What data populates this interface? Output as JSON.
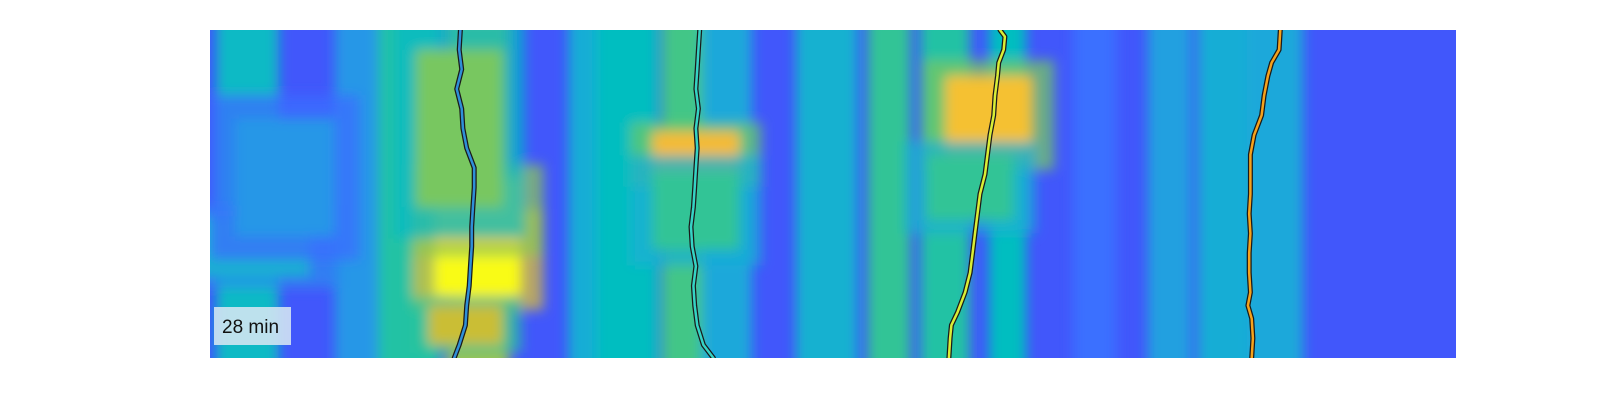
{
  "chart_data": {
    "type": "heatmap",
    "title": "",
    "xlabel": "",
    "ylabel": "",
    "colormap": "parula",
    "colormap_stops": [
      "#3e26a8",
      "#4743f8",
      "#3a70ff",
      "#1fa7dc",
      "#00bfbf",
      "#63c96c",
      "#c4bf35",
      "#f5ba34",
      "#f7de28",
      "#f9fb15"
    ],
    "grid": false,
    "axes_visible": false,
    "x": {
      "min": 0,
      "max": 1
    },
    "y": {
      "min": 0,
      "max": 1
    },
    "background_level": 0.16,
    "columns": [
      {
        "x": 0.03,
        "width": 0.05,
        "level": 0.42
      },
      {
        "x": 0.12,
        "width": 0.04,
        "level": 0.3
      },
      {
        "x": 0.16,
        "width": 0.05,
        "level": 0.48
      },
      {
        "x": 0.215,
        "width": 0.05,
        "level": 0.62
      },
      {
        "x": 0.305,
        "width": 0.035,
        "level": 0.36
      },
      {
        "x": 0.335,
        "width": 0.05,
        "level": 0.44
      },
      {
        "x": 0.385,
        "width": 0.045,
        "level": 0.52
      },
      {
        "x": 0.415,
        "width": 0.04,
        "level": 0.34
      },
      {
        "x": 0.495,
        "width": 0.05,
        "level": 0.38
      },
      {
        "x": 0.545,
        "width": 0.035,
        "level": 0.5
      },
      {
        "x": 0.59,
        "width": 0.04,
        "level": 0.48
      },
      {
        "x": 0.64,
        "width": 0.03,
        "level": 0.44
      },
      {
        "x": 0.71,
        "width": 0.035,
        "level": 0.22
      },
      {
        "x": 0.77,
        "width": 0.035,
        "level": 0.32
      },
      {
        "x": 0.815,
        "width": 0.045,
        "level": 0.36
      },
      {
        "x": 0.855,
        "width": 0.045,
        "level": 0.34
      }
    ],
    "hotspots": [
      {
        "x": 0.215,
        "y": 0.7,
        "sx": 0.035,
        "sy": 0.11,
        "level": 1.0
      },
      {
        "x": 0.215,
        "y": 0.55,
        "sx": 0.035,
        "sy": 0.1,
        "level": 0.84
      },
      {
        "x": 0.2,
        "y": 0.3,
        "sx": 0.035,
        "sy": 0.24,
        "level": 0.58
      },
      {
        "x": 0.205,
        "y": 0.9,
        "sx": 0.03,
        "sy": 0.06,
        "level": 0.68
      },
      {
        "x": 0.39,
        "y": 0.38,
        "sx": 0.035,
        "sy": 0.07,
        "level": 0.78
      },
      {
        "x": 0.39,
        "y": 0.55,
        "sx": 0.035,
        "sy": 0.12,
        "level": 0.5
      },
      {
        "x": 0.625,
        "y": 0.26,
        "sx": 0.035,
        "sy": 0.12,
        "level": 0.8
      },
      {
        "x": 0.61,
        "y": 0.48,
        "sx": 0.035,
        "sy": 0.1,
        "level": 0.5
      },
      {
        "x": 0.03,
        "y": 0.66,
        "sx": 0.05,
        "sy": 0.09,
        "level": 0.38
      },
      {
        "x": 0.06,
        "y": 0.45,
        "sx": 0.04,
        "sy": 0.18,
        "level": 0.3
      }
    ],
    "series": [
      {
        "color": "#2f8fd8",
        "points": [
          [
            0.201,
            0.0
          ],
          [
            0.2,
            0.06
          ],
          [
            0.202,
            0.12
          ],
          [
            0.198,
            0.18
          ],
          [
            0.202,
            0.24
          ],
          [
            0.203,
            0.3
          ],
          [
            0.206,
            0.36
          ],
          [
            0.212,
            0.42
          ],
          [
            0.212,
            0.48
          ],
          [
            0.211,
            0.54
          ],
          [
            0.21,
            0.6
          ],
          [
            0.21,
            0.66
          ],
          [
            0.209,
            0.72
          ],
          [
            0.208,
            0.78
          ],
          [
            0.206,
            0.84
          ],
          [
            0.205,
            0.9
          ],
          [
            0.2,
            0.96
          ],
          [
            0.196,
            1.0
          ]
        ]
      },
      {
        "color": "#35d3c4",
        "points": [
          [
            0.393,
            0.0
          ],
          [
            0.392,
            0.06
          ],
          [
            0.391,
            0.12
          ],
          [
            0.39,
            0.18
          ],
          [
            0.392,
            0.24
          ],
          [
            0.39,
            0.3
          ],
          [
            0.391,
            0.36
          ],
          [
            0.39,
            0.42
          ],
          [
            0.389,
            0.48
          ],
          [
            0.388,
            0.54
          ],
          [
            0.386,
            0.6
          ],
          [
            0.387,
            0.66
          ],
          [
            0.39,
            0.72
          ],
          [
            0.388,
            0.78
          ],
          [
            0.389,
            0.84
          ],
          [
            0.391,
            0.9
          ],
          [
            0.396,
            0.96
          ],
          [
            0.404,
            1.0
          ]
        ]
      },
      {
        "color": "#d9ee36",
        "points": [
          [
            0.634,
            0.0
          ],
          [
            0.638,
            0.02
          ],
          [
            0.637,
            0.06
          ],
          [
            0.633,
            0.1
          ],
          [
            0.632,
            0.14
          ],
          [
            0.63,
            0.2
          ],
          [
            0.629,
            0.26
          ],
          [
            0.626,
            0.32
          ],
          [
            0.624,
            0.38
          ],
          [
            0.622,
            0.44
          ],
          [
            0.618,
            0.5
          ],
          [
            0.616,
            0.56
          ],
          [
            0.614,
            0.62
          ],
          [
            0.612,
            0.68
          ],
          [
            0.61,
            0.74
          ],
          [
            0.606,
            0.8
          ],
          [
            0.6,
            0.86
          ],
          [
            0.595,
            0.9
          ],
          [
            0.594,
            0.94
          ],
          [
            0.593,
            1.0
          ]
        ]
      },
      {
        "color": "#f5a21c",
        "points": [
          [
            0.859,
            0.0
          ],
          [
            0.858,
            0.06
          ],
          [
            0.852,
            0.1
          ],
          [
            0.849,
            0.14
          ],
          [
            0.846,
            0.2
          ],
          [
            0.844,
            0.26
          ],
          [
            0.838,
            0.32
          ],
          [
            0.835,
            0.38
          ],
          [
            0.835,
            0.44
          ],
          [
            0.835,
            0.5
          ],
          [
            0.834,
            0.56
          ],
          [
            0.835,
            0.62
          ],
          [
            0.834,
            0.68
          ],
          [
            0.834,
            0.74
          ],
          [
            0.835,
            0.8
          ],
          [
            0.833,
            0.84
          ],
          [
            0.836,
            0.88
          ],
          [
            0.837,
            0.94
          ],
          [
            0.836,
            1.0
          ]
        ]
      }
    ],
    "annotation": {
      "text": "28 min",
      "position": "bottom-left"
    }
  }
}
